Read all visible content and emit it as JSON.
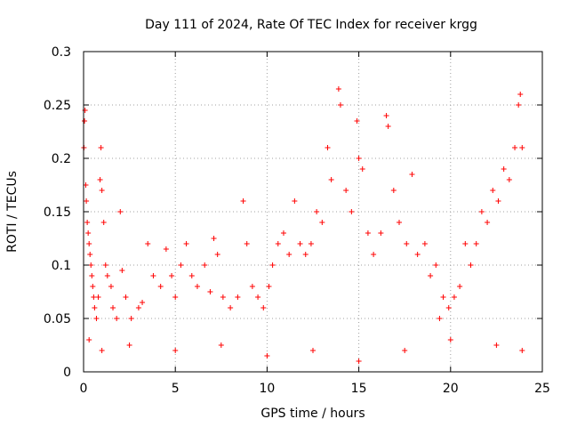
{
  "chart_data": {
    "type": "scatter",
    "title": "Day 111 of 2024, Rate Of TEC Index for receiver krgg",
    "xlabel": "GPS time / hours",
    "ylabel": "ROTI / TECUs",
    "xlim": [
      0,
      25
    ],
    "ylim": [
      0,
      0.3
    ],
    "xticks": [
      0,
      5,
      10,
      15,
      20,
      25
    ],
    "xtick_labels": [
      "0",
      "5",
      "10",
      "15",
      "20",
      "25"
    ],
    "yticks": [
      0,
      0.05,
      0.1,
      0.15,
      0.2,
      0.25,
      0.3
    ],
    "ytick_labels": [
      "0",
      "0.05",
      "0.1",
      "0.15",
      "0.2",
      "0.25",
      "0.3"
    ],
    "grid": true,
    "marker": "+",
    "series": [
      {
        "name": "ROTI",
        "color": "#ff0000",
        "points": [
          [
            0.02,
            0.21
          ],
          [
            0.05,
            0.235
          ],
          [
            0.08,
            0.245
          ],
          [
            0.12,
            0.175
          ],
          [
            0.15,
            0.16
          ],
          [
            0.2,
            0.14
          ],
          [
            0.25,
            0.13
          ],
          [
            0.3,
            0.12
          ],
          [
            0.35,
            0.11
          ],
          [
            0.4,
            0.1
          ],
          [
            0.45,
            0.09
          ],
          [
            0.5,
            0.08
          ],
          [
            0.55,
            0.07
          ],
          [
            0.6,
            0.06
          ],
          [
            0.7,
            0.05
          ],
          [
            0.8,
            0.07
          ],
          [
            0.9,
            0.18
          ],
          [
            0.95,
            0.21
          ],
          [
            1.0,
            0.17
          ],
          [
            1.1,
            0.14
          ],
          [
            1.2,
            0.1
          ],
          [
            1.3,
            0.09
          ],
          [
            1.5,
            0.08
          ],
          [
            1.6,
            0.06
          ],
          [
            1.8,
            0.05
          ],
          [
            2.0,
            0.15
          ],
          [
            2.1,
            0.095
          ],
          [
            2.3,
            0.07
          ],
          [
            2.6,
            0.05
          ],
          [
            3.0,
            0.06
          ],
          [
            3.2,
            0.065
          ],
          [
            3.5,
            0.12
          ],
          [
            3.8,
            0.09
          ],
          [
            4.2,
            0.08
          ],
          [
            4.5,
            0.115
          ],
          [
            4.8,
            0.09
          ],
          [
            5.0,
            0.07
          ],
          [
            5.3,
            0.1
          ],
          [
            5.6,
            0.12
          ],
          [
            5.9,
            0.09
          ],
          [
            6.2,
            0.08
          ],
          [
            6.6,
            0.1
          ],
          [
            6.9,
            0.075
          ],
          [
            7.1,
            0.125
          ],
          [
            7.3,
            0.11
          ],
          [
            7.6,
            0.07
          ],
          [
            8.0,
            0.06
          ],
          [
            8.4,
            0.07
          ],
          [
            8.7,
            0.16
          ],
          [
            8.9,
            0.12
          ],
          [
            9.2,
            0.08
          ],
          [
            9.5,
            0.07
          ],
          [
            9.8,
            0.06
          ],
          [
            10.1,
            0.08
          ],
          [
            10.3,
            0.1
          ],
          [
            10.6,
            0.12
          ],
          [
            10.9,
            0.13
          ],
          [
            11.2,
            0.11
          ],
          [
            11.5,
            0.16
          ],
          [
            11.8,
            0.12
          ],
          [
            12.1,
            0.11
          ],
          [
            12.4,
            0.12
          ],
          [
            12.7,
            0.15
          ],
          [
            13.0,
            0.14
          ],
          [
            13.3,
            0.21
          ],
          [
            13.5,
            0.18
          ],
          [
            13.9,
            0.265
          ],
          [
            14.0,
            0.25
          ],
          [
            14.3,
            0.17
          ],
          [
            14.6,
            0.15
          ],
          [
            14.9,
            0.235
          ],
          [
            15.0,
            0.2
          ],
          [
            15.2,
            0.19
          ],
          [
            15.5,
            0.13
          ],
          [
            15.8,
            0.11
          ],
          [
            16.2,
            0.13
          ],
          [
            16.5,
            0.24
          ],
          [
            16.6,
            0.23
          ],
          [
            16.9,
            0.17
          ],
          [
            17.2,
            0.14
          ],
          [
            17.6,
            0.12
          ],
          [
            17.9,
            0.185
          ],
          [
            18.2,
            0.11
          ],
          [
            18.6,
            0.12
          ],
          [
            18.9,
            0.09
          ],
          [
            19.2,
            0.1
          ],
          [
            19.4,
            0.05
          ],
          [
            19.6,
            0.07
          ],
          [
            19.9,
            0.06
          ],
          [
            20.2,
            0.07
          ],
          [
            20.5,
            0.08
          ],
          [
            20.8,
            0.12
          ],
          [
            21.1,
            0.1
          ],
          [
            21.4,
            0.12
          ],
          [
            21.7,
            0.15
          ],
          [
            22.0,
            0.14
          ],
          [
            22.3,
            0.17
          ],
          [
            22.6,
            0.16
          ],
          [
            22.9,
            0.19
          ],
          [
            23.2,
            0.18
          ],
          [
            23.5,
            0.21
          ],
          [
            23.7,
            0.25
          ],
          [
            23.8,
            0.26
          ],
          [
            23.9,
            0.21
          ],
          [
            0.3,
            0.03
          ],
          [
            1.0,
            0.02
          ],
          [
            2.5,
            0.025
          ],
          [
            5.0,
            0.02
          ],
          [
            7.5,
            0.025
          ],
          [
            10.0,
            0.015
          ],
          [
            12.5,
            0.02
          ],
          [
            15.0,
            0.01
          ],
          [
            17.5,
            0.02
          ],
          [
            20.0,
            0.03
          ],
          [
            22.5,
            0.025
          ],
          [
            23.9,
            0.02
          ]
        ]
      }
    ]
  }
}
